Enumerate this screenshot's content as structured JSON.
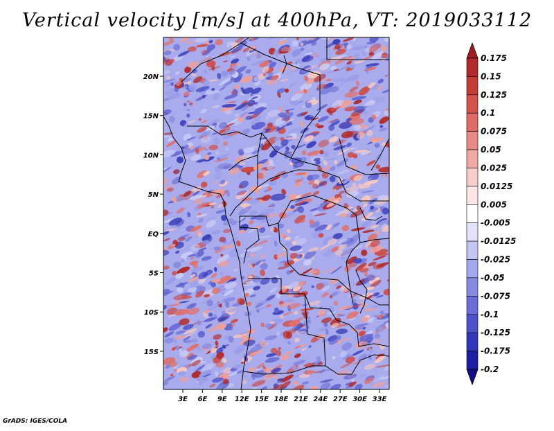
{
  "title": "Vertical velocity [m/s] at 400hPa, VT: 2019033112",
  "footer": "GrADS: IGES/COLA",
  "map": {
    "lat_ticks": [
      "20N",
      "15N",
      "10N",
      "5N",
      "EQ",
      "5S",
      "10S",
      "15S"
    ],
    "lon_ticks": [
      "3E",
      "6E",
      "9E",
      "12E",
      "15E",
      "18E",
      "21E",
      "24E",
      "27E",
      "30E",
      "33E"
    ]
  },
  "colorbar": {
    "labels": [
      "0.175",
      "0.15",
      "0.125",
      "0.1",
      "0.075",
      "0.05",
      "0.025",
      "0.0125",
      "0.005",
      "-0.005",
      "-0.0125",
      "-0.025",
      "-0.05",
      "-0.075",
      "-0.1",
      "-0.125",
      "-0.175",
      "-0.2"
    ],
    "colors": [
      "#a01c23",
      "#b32a2c",
      "#c43c3a",
      "#d4524d",
      "#df6b66",
      "#e88a85",
      "#f0aaa6",
      "#f7cecb",
      "#fbe8e6",
      "#ffffff",
      "#e2e3fb",
      "#c4c6f4",
      "#a5a8ec",
      "#878ae3",
      "#6a6dd8",
      "#4e51c9",
      "#3236b8",
      "#1c1fa3",
      "#100f8a"
    ]
  }
}
